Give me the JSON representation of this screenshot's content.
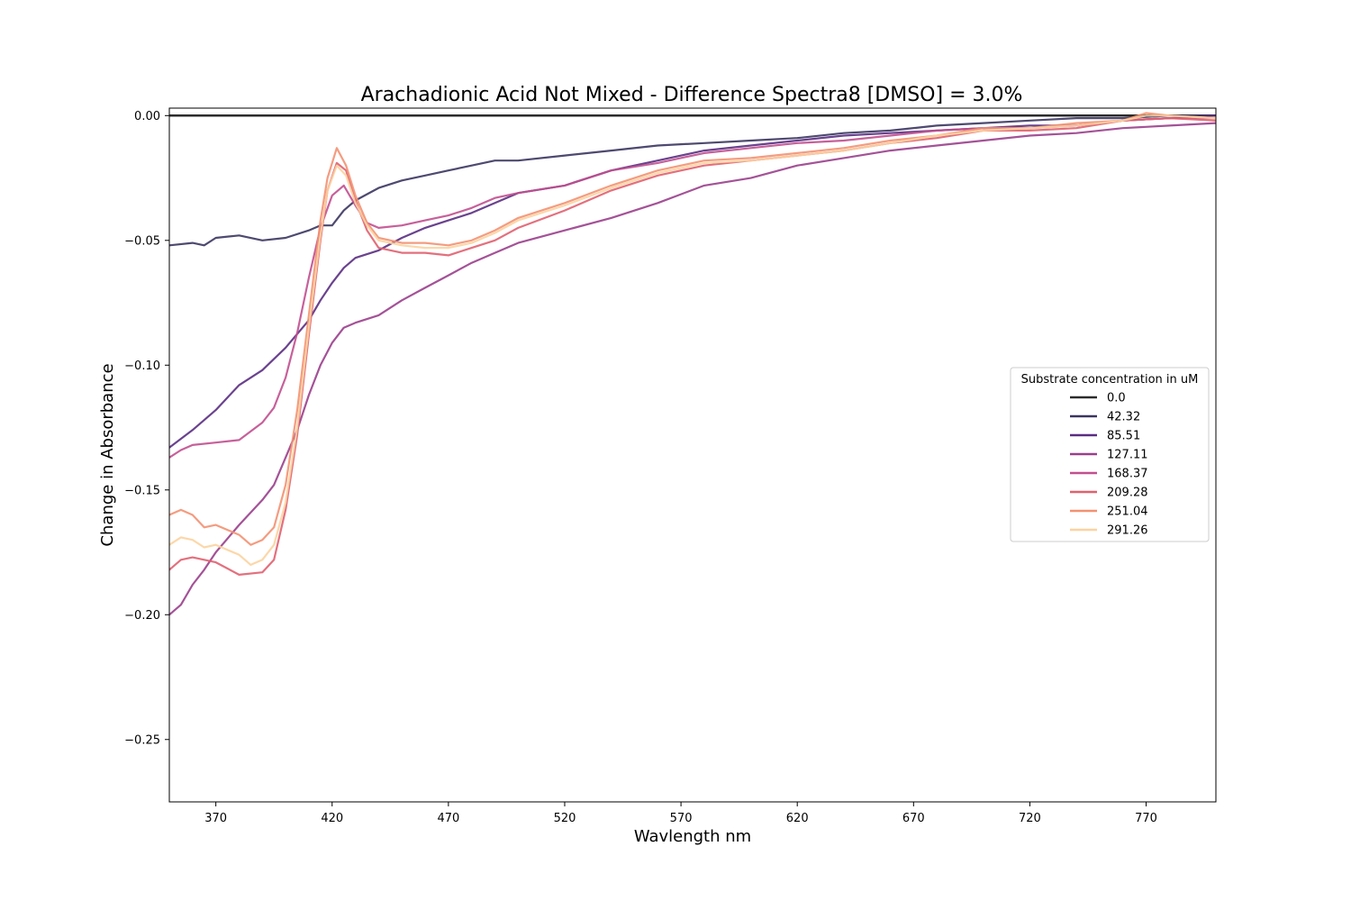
{
  "chart_data": {
    "type": "line",
    "title": "Arachadionic Acid Not Mixed - Difference Spectra8 [DMSO] = 3.0%",
    "xlabel": "Wavlength nm",
    "ylabel": "Change in Absorbance",
    "xlim": [
      350,
      800
    ],
    "ylim": [
      -0.275,
      0.003
    ],
    "xticks": [
      370,
      420,
      470,
      520,
      570,
      620,
      670,
      720,
      770
    ],
    "yticks": [
      0.0,
      -0.05,
      -0.1,
      -0.15,
      -0.2,
      -0.25
    ],
    "ytick_labels": [
      "0.00",
      "−0.05",
      "−0.10",
      "−0.15",
      "−0.20",
      "−0.25"
    ],
    "grid": false,
    "legend": {
      "title": "Substrate concentration in uM",
      "placement": "center-right"
    },
    "series": [
      {
        "name": "0.0",
        "color": "#2b2b2b",
        "points": [
          [
            350,
            0.0
          ],
          [
            800,
            0.0
          ]
        ]
      },
      {
        "name": "42.32",
        "color": "#3b3561",
        "points": [
          [
            350,
            -0.052
          ],
          [
            360,
            -0.051
          ],
          [
            365,
            -0.052
          ],
          [
            370,
            -0.049
          ],
          [
            380,
            -0.048
          ],
          [
            390,
            -0.05
          ],
          [
            400,
            -0.049
          ],
          [
            410,
            -0.046
          ],
          [
            415,
            -0.044
          ],
          [
            420,
            -0.044
          ],
          [
            425,
            -0.038
          ],
          [
            430,
            -0.034
          ],
          [
            440,
            -0.029
          ],
          [
            450,
            -0.026
          ],
          [
            460,
            -0.024
          ],
          [
            470,
            -0.022
          ],
          [
            480,
            -0.02
          ],
          [
            490,
            -0.018
          ],
          [
            500,
            -0.018
          ],
          [
            520,
            -0.016
          ],
          [
            540,
            -0.014
          ],
          [
            560,
            -0.012
          ],
          [
            580,
            -0.011
          ],
          [
            600,
            -0.01
          ],
          [
            620,
            -0.009
          ],
          [
            640,
            -0.007
          ],
          [
            660,
            -0.006
          ],
          [
            680,
            -0.004
          ],
          [
            700,
            -0.003
          ],
          [
            720,
            -0.002
          ],
          [
            740,
            -0.001
          ],
          [
            760,
            -0.001
          ],
          [
            780,
            0.0
          ],
          [
            800,
            0.0
          ]
        ]
      },
      {
        "name": "85.51",
        "color": "#5a2d82",
        "points": [
          [
            350,
            -0.133
          ],
          [
            360,
            -0.126
          ],
          [
            370,
            -0.118
          ],
          [
            380,
            -0.108
          ],
          [
            390,
            -0.102
          ],
          [
            400,
            -0.093
          ],
          [
            410,
            -0.082
          ],
          [
            415,
            -0.074
          ],
          [
            420,
            -0.067
          ],
          [
            425,
            -0.061
          ],
          [
            430,
            -0.057
          ],
          [
            440,
            -0.054
          ],
          [
            450,
            -0.049
          ],
          [
            460,
            -0.045
          ],
          [
            470,
            -0.042
          ],
          [
            480,
            -0.039
          ],
          [
            490,
            -0.035
          ],
          [
            500,
            -0.031
          ],
          [
            520,
            -0.028
          ],
          [
            540,
            -0.022
          ],
          [
            560,
            -0.018
          ],
          [
            580,
            -0.014
          ],
          [
            600,
            -0.012
          ],
          [
            620,
            -0.01
          ],
          [
            640,
            -0.008
          ],
          [
            660,
            -0.007
          ],
          [
            680,
            -0.006
          ],
          [
            700,
            -0.005
          ],
          [
            720,
            -0.004
          ],
          [
            740,
            -0.004
          ],
          [
            760,
            -0.002
          ],
          [
            780,
            -0.001
          ],
          [
            800,
            0.0
          ]
        ]
      },
      {
        "name": "127.11",
        "color": "#9a3f8c",
        "points": [
          [
            350,
            -0.2
          ],
          [
            355,
            -0.196
          ],
          [
            360,
            -0.188
          ],
          [
            365,
            -0.182
          ],
          [
            370,
            -0.175
          ],
          [
            380,
            -0.164
          ],
          [
            390,
            -0.154
          ],
          [
            395,
            -0.148
          ],
          [
            400,
            -0.137
          ],
          [
            405,
            -0.126
          ],
          [
            410,
            -0.112
          ],
          [
            415,
            -0.1
          ],
          [
            420,
            -0.091
          ],
          [
            425,
            -0.085
          ],
          [
            430,
            -0.083
          ],
          [
            440,
            -0.08
          ],
          [
            450,
            -0.074
          ],
          [
            460,
            -0.069
          ],
          [
            470,
            -0.064
          ],
          [
            480,
            -0.059
          ],
          [
            490,
            -0.055
          ],
          [
            500,
            -0.051
          ],
          [
            520,
            -0.046
          ],
          [
            540,
            -0.041
          ],
          [
            560,
            -0.035
          ],
          [
            580,
            -0.028
          ],
          [
            600,
            -0.025
          ],
          [
            620,
            -0.02
          ],
          [
            640,
            -0.017
          ],
          [
            660,
            -0.014
          ],
          [
            680,
            -0.012
          ],
          [
            700,
            -0.01
          ],
          [
            720,
            -0.008
          ],
          [
            740,
            -0.007
          ],
          [
            760,
            -0.005
          ],
          [
            780,
            -0.004
          ],
          [
            800,
            -0.003
          ]
        ]
      },
      {
        "name": "168.37",
        "color": "#c14f8f",
        "points": [
          [
            350,
            -0.137
          ],
          [
            355,
            -0.134
          ],
          [
            360,
            -0.132
          ],
          [
            370,
            -0.131
          ],
          [
            380,
            -0.13
          ],
          [
            390,
            -0.123
          ],
          [
            395,
            -0.117
          ],
          [
            400,
            -0.105
          ],
          [
            405,
            -0.087
          ],
          [
            410,
            -0.065
          ],
          [
            415,
            -0.045
          ],
          [
            420,
            -0.032
          ],
          [
            425,
            -0.028
          ],
          [
            430,
            -0.036
          ],
          [
            435,
            -0.043
          ],
          [
            440,
            -0.045
          ],
          [
            450,
            -0.044
          ],
          [
            460,
            -0.042
          ],
          [
            470,
            -0.04
          ],
          [
            480,
            -0.037
          ],
          [
            490,
            -0.033
          ],
          [
            500,
            -0.031
          ],
          [
            520,
            -0.028
          ],
          [
            540,
            -0.022
          ],
          [
            560,
            -0.019
          ],
          [
            580,
            -0.015
          ],
          [
            600,
            -0.013
          ],
          [
            620,
            -0.011
          ],
          [
            640,
            -0.01
          ],
          [
            660,
            -0.008
          ],
          [
            680,
            -0.006
          ],
          [
            700,
            -0.005
          ],
          [
            720,
            -0.005
          ],
          [
            740,
            -0.004
          ],
          [
            760,
            -0.002
          ],
          [
            780,
            -0.001
          ],
          [
            800,
            -0.001
          ]
        ]
      },
      {
        "name": "209.28",
        "color": "#e0616f",
        "points": [
          [
            350,
            -0.182
          ],
          [
            355,
            -0.178
          ],
          [
            360,
            -0.177
          ],
          [
            370,
            -0.179
          ],
          [
            380,
            -0.184
          ],
          [
            390,
            -0.183
          ],
          [
            395,
            -0.178
          ],
          [
            400,
            -0.158
          ],
          [
            405,
            -0.128
          ],
          [
            410,
            -0.088
          ],
          [
            415,
            -0.05
          ],
          [
            418,
            -0.03
          ],
          [
            422,
            -0.019
          ],
          [
            426,
            -0.022
          ],
          [
            430,
            -0.034
          ],
          [
            435,
            -0.046
          ],
          [
            440,
            -0.053
          ],
          [
            450,
            -0.055
          ],
          [
            460,
            -0.055
          ],
          [
            470,
            -0.056
          ],
          [
            480,
            -0.053
          ],
          [
            490,
            -0.05
          ],
          [
            500,
            -0.045
          ],
          [
            520,
            -0.038
          ],
          [
            540,
            -0.03
          ],
          [
            560,
            -0.024
          ],
          [
            580,
            -0.02
          ],
          [
            600,
            -0.018
          ],
          [
            620,
            -0.016
          ],
          [
            640,
            -0.014
          ],
          [
            660,
            -0.011
          ],
          [
            680,
            -0.009
          ],
          [
            700,
            -0.006
          ],
          [
            720,
            -0.006
          ],
          [
            740,
            -0.005
          ],
          [
            760,
            -0.002
          ],
          [
            780,
            -0.001
          ],
          [
            800,
            -0.002
          ]
        ]
      },
      {
        "name": "251.04",
        "color": "#f39172",
        "points": [
          [
            350,
            -0.16
          ],
          [
            355,
            -0.158
          ],
          [
            360,
            -0.16
          ],
          [
            365,
            -0.165
          ],
          [
            370,
            -0.164
          ],
          [
            380,
            -0.168
          ],
          [
            385,
            -0.172
          ],
          [
            390,
            -0.17
          ],
          [
            395,
            -0.165
          ],
          [
            400,
            -0.148
          ],
          [
            405,
            -0.118
          ],
          [
            410,
            -0.08
          ],
          [
            415,
            -0.042
          ],
          [
            418,
            -0.025
          ],
          [
            422,
            -0.013
          ],
          [
            426,
            -0.02
          ],
          [
            430,
            -0.032
          ],
          [
            435,
            -0.043
          ],
          [
            440,
            -0.049
          ],
          [
            450,
            -0.051
          ],
          [
            460,
            -0.051
          ],
          [
            470,
            -0.052
          ],
          [
            480,
            -0.05
          ],
          [
            490,
            -0.046
          ],
          [
            500,
            -0.041
          ],
          [
            520,
            -0.035
          ],
          [
            540,
            -0.028
          ],
          [
            560,
            -0.022
          ],
          [
            580,
            -0.018
          ],
          [
            600,
            -0.017
          ],
          [
            620,
            -0.015
          ],
          [
            640,
            -0.013
          ],
          [
            660,
            -0.01
          ],
          [
            680,
            -0.008
          ],
          [
            700,
            -0.005
          ],
          [
            720,
            -0.005
          ],
          [
            740,
            -0.003
          ],
          [
            760,
            -0.002
          ],
          [
            770,
            0.001
          ],
          [
            780,
            0.0
          ],
          [
            800,
            -0.001
          ]
        ]
      },
      {
        "name": "291.26",
        "color": "#fcd3a0",
        "points": [
          [
            350,
            -0.172
          ],
          [
            355,
            -0.169
          ],
          [
            360,
            -0.17
          ],
          [
            365,
            -0.173
          ],
          [
            370,
            -0.172
          ],
          [
            380,
            -0.176
          ],
          [
            385,
            -0.18
          ],
          [
            390,
            -0.178
          ],
          [
            395,
            -0.172
          ],
          [
            400,
            -0.155
          ],
          [
            405,
            -0.125
          ],
          [
            410,
            -0.085
          ],
          [
            415,
            -0.048
          ],
          [
            418,
            -0.03
          ],
          [
            422,
            -0.02
          ],
          [
            426,
            -0.024
          ],
          [
            430,
            -0.035
          ],
          [
            435,
            -0.044
          ],
          [
            440,
            -0.05
          ],
          [
            450,
            -0.052
          ],
          [
            460,
            -0.053
          ],
          [
            470,
            -0.053
          ],
          [
            480,
            -0.051
          ],
          [
            490,
            -0.047
          ],
          [
            500,
            -0.042
          ],
          [
            520,
            -0.036
          ],
          [
            540,
            -0.029
          ],
          [
            560,
            -0.023
          ],
          [
            580,
            -0.019
          ],
          [
            600,
            -0.018
          ],
          [
            620,
            -0.016
          ],
          [
            640,
            -0.014
          ],
          [
            660,
            -0.011
          ],
          [
            680,
            -0.008
          ],
          [
            700,
            -0.006
          ],
          [
            720,
            -0.005
          ],
          [
            740,
            -0.004
          ],
          [
            760,
            -0.002
          ],
          [
            770,
            0.0
          ],
          [
            780,
            0.0
          ],
          [
            800,
            -0.001
          ]
        ]
      }
    ]
  }
}
